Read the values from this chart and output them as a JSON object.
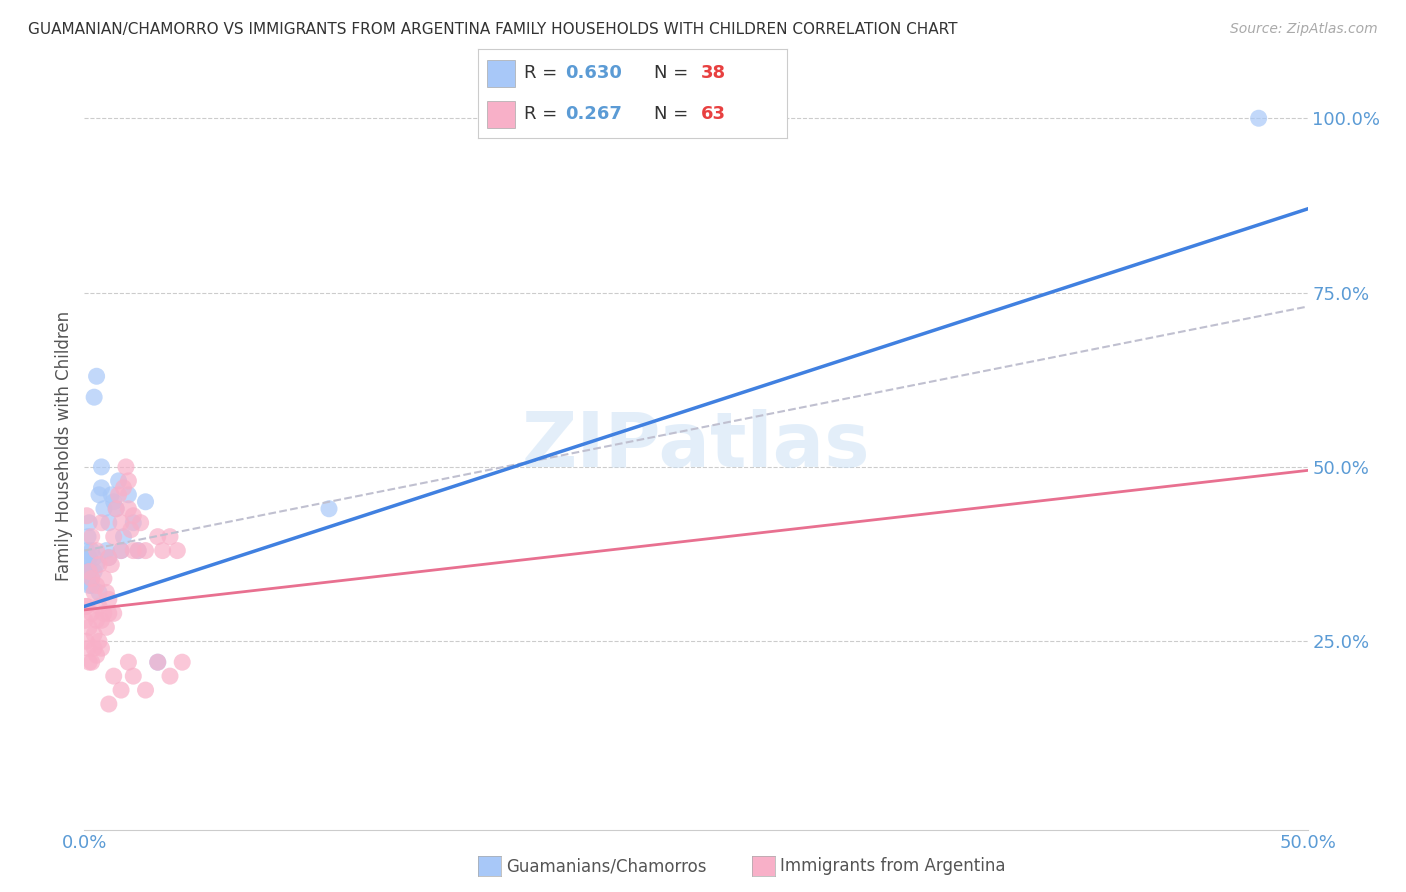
{
  "title": "GUAMANIAN/CHAMORRO VS IMMIGRANTS FROM ARGENTINA FAMILY HOUSEHOLDS WITH CHILDREN CORRELATION CHART",
  "source": "Source: ZipAtlas.com",
  "ylabel": "Family Households with Children",
  "xlim": [
    0.0,
    0.5
  ],
  "ylim": [
    -0.02,
    1.08
  ],
  "watermark": "ZIPatlas",
  "legend_R1": "R = 0.630",
  "legend_N1": "N = 38",
  "legend_R2": "R = 0.267",
  "legend_N2": "N = 63",
  "color_blue": "#a8c8f8",
  "color_pink": "#f8b0c8",
  "color_line_blue": "#4080e0",
  "color_line_pink": "#e87090",
  "color_line_gray_dash": "#c0c0d0",
  "color_axis_labels": "#5b9bd5",
  "color_N_red": "#e84040",
  "background_color": "#ffffff",
  "guamanians_x": [
    0.0005,
    0.001,
    0.001,
    0.0015,
    0.0015,
    0.002,
    0.002,
    0.002,
    0.002,
    0.003,
    0.003,
    0.003,
    0.004,
    0.004,
    0.004,
    0.005,
    0.005,
    0.006,
    0.006,
    0.007,
    0.007,
    0.008,
    0.009,
    0.01,
    0.01,
    0.011,
    0.012,
    0.013,
    0.014,
    0.015,
    0.016,
    0.018,
    0.02,
    0.022,
    0.025,
    0.03,
    0.1,
    0.48
  ],
  "guamanians_y": [
    0.37,
    0.38,
    0.36,
    0.35,
    0.4,
    0.33,
    0.37,
    0.42,
    0.35,
    0.34,
    0.38,
    0.33,
    0.35,
    0.37,
    0.6,
    0.36,
    0.63,
    0.32,
    0.46,
    0.5,
    0.47,
    0.44,
    0.38,
    0.42,
    0.37,
    0.46,
    0.45,
    0.44,
    0.48,
    0.38,
    0.4,
    0.46,
    0.42,
    0.38,
    0.45,
    0.22,
    0.44,
    1.0
  ],
  "argentina_x": [
    0.0003,
    0.0005,
    0.0008,
    0.001,
    0.001,
    0.0015,
    0.002,
    0.002,
    0.002,
    0.003,
    0.003,
    0.003,
    0.003,
    0.004,
    0.004,
    0.004,
    0.005,
    0.005,
    0.005,
    0.005,
    0.006,
    0.006,
    0.006,
    0.007,
    0.007,
    0.007,
    0.008,
    0.008,
    0.009,
    0.009,
    0.01,
    0.01,
    0.01,
    0.011,
    0.012,
    0.012,
    0.013,
    0.014,
    0.015,
    0.015,
    0.016,
    0.017,
    0.018,
    0.018,
    0.019,
    0.02,
    0.02,
    0.022,
    0.023,
    0.025,
    0.03,
    0.032,
    0.035,
    0.038,
    0.01,
    0.012,
    0.015,
    0.018,
    0.02,
    0.025,
    0.03,
    0.035,
    0.04
  ],
  "argentina_y": [
    0.28,
    0.3,
    0.25,
    0.3,
    0.43,
    0.24,
    0.27,
    0.35,
    0.22,
    0.29,
    0.34,
    0.4,
    0.22,
    0.26,
    0.32,
    0.24,
    0.28,
    0.33,
    0.38,
    0.23,
    0.3,
    0.36,
    0.25,
    0.28,
    0.42,
    0.24,
    0.29,
    0.34,
    0.27,
    0.32,
    0.31,
    0.37,
    0.29,
    0.36,
    0.4,
    0.29,
    0.44,
    0.46,
    0.42,
    0.38,
    0.47,
    0.5,
    0.48,
    0.44,
    0.41,
    0.38,
    0.43,
    0.38,
    0.42,
    0.38,
    0.4,
    0.38,
    0.4,
    0.38,
    0.16,
    0.2,
    0.18,
    0.22,
    0.2,
    0.18,
    0.22,
    0.2,
    0.22
  ]
}
